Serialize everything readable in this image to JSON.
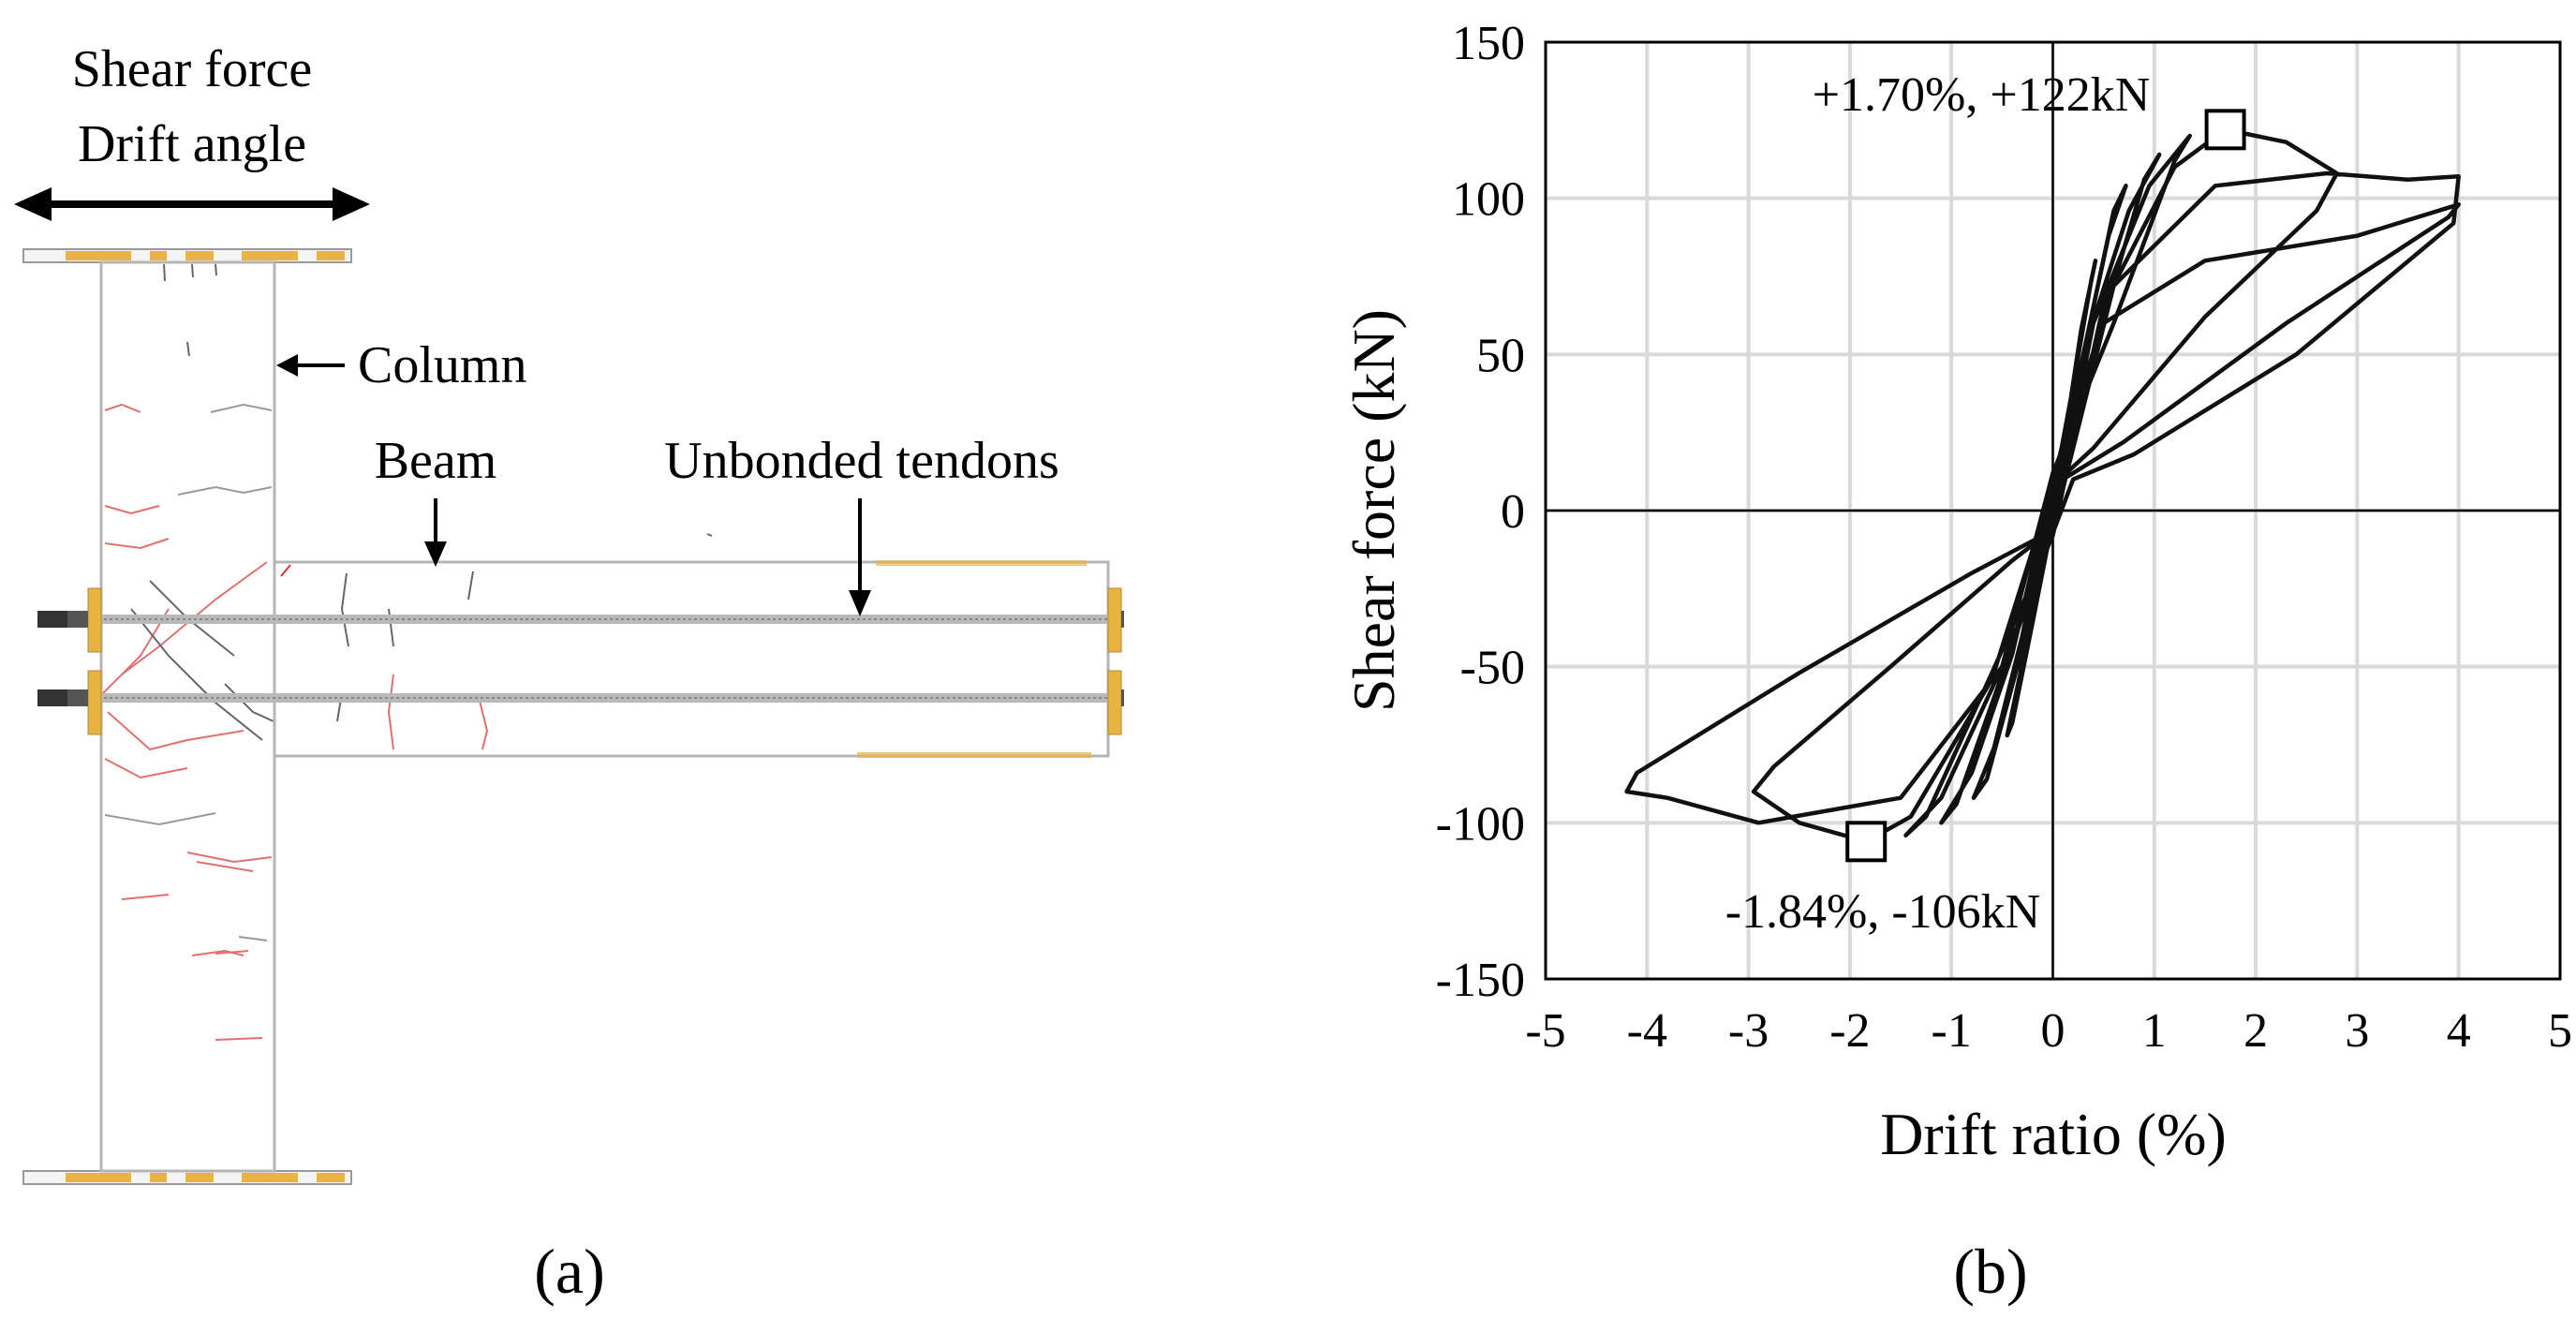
{
  "panel_a": {
    "label": "(a)",
    "load_label_line1": "Shear force",
    "load_label_line2": "Drift angle",
    "column_label": "Column",
    "beam_label": "Beam",
    "tendons_label": "Unbonded tendons"
  },
  "panel_b": {
    "label": "(b)"
  },
  "chart_data": {
    "type": "line",
    "title": "",
    "xlabel": "Drift ratio (%)",
    "ylabel": "Shear force (kN)",
    "xlim": [
      -5,
      5
    ],
    "ylim": [
      -150,
      150
    ],
    "x_ticks": [
      "-5",
      "-4",
      "-3",
      "-2",
      "-1",
      "0",
      "1",
      "2",
      "3",
      "4",
      "5"
    ],
    "y_ticks": [
      "150",
      "100",
      "50",
      "0",
      "-50",
      "-100",
      "-150"
    ],
    "grid": true,
    "annotations": [
      {
        "text": "+1.70%, +122kN",
        "x": 1.7,
        "y": 122
      },
      {
        "text": "-1.84%, -106kN",
        "x": -1.84,
        "y": -106
      }
    ],
    "series": [
      {
        "name": "Hysteresis loop",
        "x": [
          0,
          0.08,
          0.15,
          0.12,
          0.0,
          -0.08,
          -0.15,
          -0.12,
          0.0,
          0.15,
          0.28,
          0.42,
          0.38,
          0.2,
          0.0,
          -0.18,
          -0.32,
          -0.45,
          -0.4,
          -0.2,
          0.0,
          0.3,
          0.55,
          0.72,
          0.6,
          0.3,
          0.0,
          -0.3,
          -0.58,
          -0.78,
          -0.65,
          -0.3,
          0.0,
          0.35,
          0.75,
          1.05,
          0.9,
          0.45,
          0.0,
          -0.4,
          -0.8,
          -1.1,
          -0.95,
          -0.45,
          0.0,
          0.4,
          0.95,
          1.35,
          1.2,
          0.6,
          0.0,
          -0.5,
          -1.1,
          -1.45,
          -1.25,
          -0.6,
          0.0,
          0.5,
          1.2,
          1.7,
          2.3,
          2.8,
          2.6,
          1.5,
          0.4,
          0.0,
          -0.6,
          -1.4,
          -1.84,
          -2.5,
          -2.95,
          -2.75,
          -1.6,
          -0.4,
          0.0,
          0.6,
          1.6,
          2.7,
          3.5,
          4.0,
          3.95,
          2.4,
          0.8,
          0.2,
          -0.5,
          -1.5,
          -2.9,
          -3.8,
          -4.2,
          -4.1,
          -2.5,
          -0.8,
          -0.1,
          0.5,
          1.5,
          3.0,
          4.0,
          3.9,
          2.3,
          0.7,
          0.0
        ],
        "y": [
          0,
          8,
          20,
          16,
          0,
          -10,
          -22,
          -18,
          0,
          30,
          58,
          80,
          74,
          40,
          5,
          -25,
          -52,
          -72,
          -68,
          -36,
          -3,
          50,
          88,
          104,
          96,
          50,
          8,
          -40,
          -76,
          -92,
          -86,
          -44,
          -4,
          56,
          96,
          114,
          106,
          56,
          10,
          -46,
          -84,
          -100,
          -94,
          -48,
          -6,
          60,
          104,
          120,
          112,
          60,
          12,
          -50,
          -92,
          -104,
          -98,
          -52,
          -8,
          66,
          110,
          122,
          118,
          108,
          96,
          62,
          20,
          8,
          -54,
          -98,
          -106,
          -100,
          -90,
          -82,
          -50,
          -16,
          -6,
          72,
          104,
          108,
          106,
          107,
          92,
          50,
          18,
          10,
          -50,
          -92,
          -100,
          -92,
          -90,
          -84,
          -52,
          -20,
          -8,
          60,
          80,
          88,
          98,
          94,
          60,
          22,
          8
        ]
      }
    ]
  }
}
